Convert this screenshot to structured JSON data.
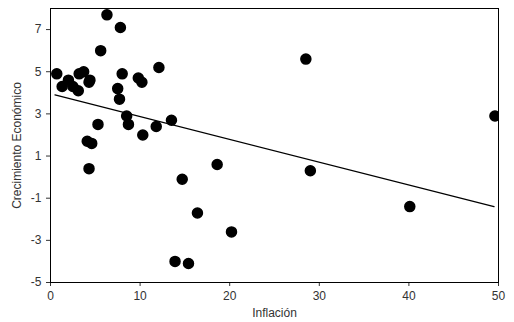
{
  "chart_data": {
    "type": "scatter",
    "xlabel": "Inflación",
    "ylabel": "Crecimiento Económico",
    "x": [
      0.7,
      1.3,
      2.0,
      2.5,
      3.1,
      3.2,
      3.7,
      4.1,
      4.3,
      4.4,
      4.3,
      4.6,
      5.3,
      5.6,
      6.3,
      7.5,
      7.7,
      7.8,
      8.0,
      8.5,
      8.7,
      9.8,
      10.2,
      10.3,
      11.8,
      12.1,
      13.5,
      13.9,
      14.7,
      15.4,
      16.4,
      18.6,
      20.2,
      28.5,
      29.0,
      40.1,
      49.6
    ],
    "values": [
      4.9,
      4.3,
      4.6,
      4.3,
      4.1,
      4.9,
      5.0,
      1.7,
      4.5,
      4.6,
      0.4,
      1.6,
      2.5,
      6.0,
      7.7,
      4.2,
      3.7,
      7.1,
      4.9,
      2.9,
      2.5,
      4.7,
      4.5,
      2.0,
      2.4,
      5.2,
      2.7,
      -4.0,
      -0.1,
      -4.1,
      -1.7,
      0.6,
      -2.6,
      5.6,
      0.3,
      -1.4,
      2.9
    ],
    "color": "#000000",
    "marker": "circle",
    "trendline": {
      "x": [
        0.5,
        49.5
      ],
      "values": [
        3.9,
        -1.4
      ],
      "color": "#000000",
      "line_style": "solid"
    },
    "xlim": [
      0,
      50
    ],
    "xticks": [
      0,
      10,
      20,
      30,
      40,
      50
    ],
    "ylim": [
      -5,
      8
    ],
    "yticks": [
      -5,
      -3,
      -1,
      1,
      3,
      5,
      7
    ],
    "grid": false
  }
}
